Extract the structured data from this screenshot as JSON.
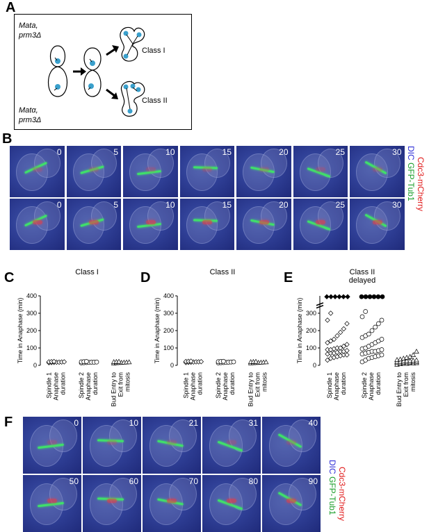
{
  "panels": {
    "A": {
      "letter": "A",
      "strain_top_line1": "Mata,",
      "strain_top_line2": "prm3Δ",
      "strain_bottom_line1": "Matα,",
      "strain_bottom_line2": "prm3Δ",
      "class1_label": "Class I",
      "class2_label": "Class II"
    },
    "B": {
      "letter": "B",
      "row1_times": [
        "0",
        "5",
        "10",
        "15",
        "20",
        "25",
        "30"
      ],
      "row2_times": [
        "0",
        "5",
        "10",
        "15",
        "20",
        "25",
        "30"
      ],
      "label_dic": "DIC",
      "label_gfp": "GFP-Tub1",
      "label_mcherry": "Cdc3-mCherry"
    },
    "C": {
      "letter": "C",
      "title": "Class I"
    },
    "D": {
      "letter": "D",
      "title": "Class II"
    },
    "E": {
      "letter": "E",
      "title_line1": "Class II",
      "title_line2": "delayed"
    },
    "F": {
      "letter": "F",
      "row1_times": [
        "0",
        "10",
        "21",
        "31",
        "40"
      ],
      "row2_times": [
        "50",
        "60",
        "70",
        "80",
        "90"
      ],
      "label_dic": "DIC",
      "label_gfp": "GFP-Tub1",
      "label_mcherry": "Cdc3-mCherry"
    }
  },
  "colors": {
    "dic": "#2b2bd6",
    "gfp": "#1a9e2a",
    "mcherry": "#e01818"
  },
  "chart_data": [
    {
      "type": "scatter",
      "title": "Class I",
      "ylabel": "Time in Anaphase (min)",
      "ylim": [
        0,
        400
      ],
      "yticks": [
        "0",
        "100",
        "200",
        "300",
        "400"
      ],
      "categories": [
        "Spindle 1\nAnaphase\nduration",
        "Spindle 2\nAnaphase\nduration",
        "Bud Entry to\nExit from\nmitosis"
      ],
      "series": [
        {
          "marker": "diamond",
          "values": [
            15,
            16,
            17,
            18,
            18,
            19,
            20,
            20,
            21,
            22
          ]
        },
        {
          "marker": "circle",
          "values": [
            14,
            15,
            16,
            17,
            18,
            18,
            19,
            20,
            21,
            22
          ]
        },
        {
          "marker": "triangle",
          "values": [
            12,
            14,
            15,
            16,
            17,
            18,
            19,
            20,
            21,
            22
          ]
        }
      ]
    },
    {
      "type": "scatter",
      "title": "Class II",
      "ylabel": "Time in Anaphase (min)",
      "ylim": [
        0,
        400
      ],
      "yticks": [
        "0",
        "100",
        "200",
        "300",
        "400"
      ],
      "categories": [
        "Spindle 1\nAnaphase\nduration",
        "Spindle 2\nAnaphase\nduration",
        "Bud Entry to\nExit from\nmitosis"
      ],
      "series": [
        {
          "marker": "diamond",
          "values": [
            16,
            17,
            18,
            19,
            20,
            20,
            21,
            22,
            23,
            24
          ]
        },
        {
          "marker": "circle",
          "values": [
            14,
            15,
            16,
            17,
            18,
            19,
            20,
            21,
            22,
            23
          ]
        },
        {
          "marker": "triangle",
          "values": [
            13,
            14,
            15,
            16,
            17,
            18,
            19,
            20,
            21,
            22
          ]
        }
      ]
    },
    {
      "type": "scatter",
      "title": "Class II delayed",
      "ylabel": "Time in Anaphase (min)",
      "ylim": [
        0,
        400
      ],
      "yticks": [
        "0",
        "100",
        "200",
        "300"
      ],
      "axis_break": true,
      "categories": [
        "Spindle 1\nAnaphase\nduration",
        "Spindle 2\nAnaphase\nduration",
        "Bud Entry to\nExit from\nmitosis"
      ],
      "series": [
        {
          "marker": "diamond",
          "values": [
            30,
            40,
            45,
            50,
            55,
            60,
            60,
            65,
            70,
            70,
            75,
            80,
            80,
            85,
            90,
            90,
            95,
            100,
            100,
            110,
            120,
            130,
            140,
            150,
            170,
            190,
            210,
            240,
            260,
            300
          ],
          "above_break_filled": 6
        },
        {
          "marker": "circle",
          "values": [
            20,
            30,
            40,
            45,
            50,
            55,
            60,
            65,
            70,
            75,
            80,
            80,
            85,
            90,
            95,
            100,
            110,
            120,
            130,
            140,
            150,
            160,
            170,
            180,
            200,
            220,
            240,
            260,
            280,
            310
          ],
          "above_break_filled": 6
        },
        {
          "marker": "triangle",
          "values": [
            5,
            8,
            10,
            10,
            12,
            12,
            14,
            15,
            15,
            16,
            18,
            18,
            20,
            20,
            22,
            22,
            24,
            25,
            26,
            28,
            30,
            32,
            35,
            40,
            45,
            50,
            60,
            80
          ]
        }
      ]
    }
  ]
}
